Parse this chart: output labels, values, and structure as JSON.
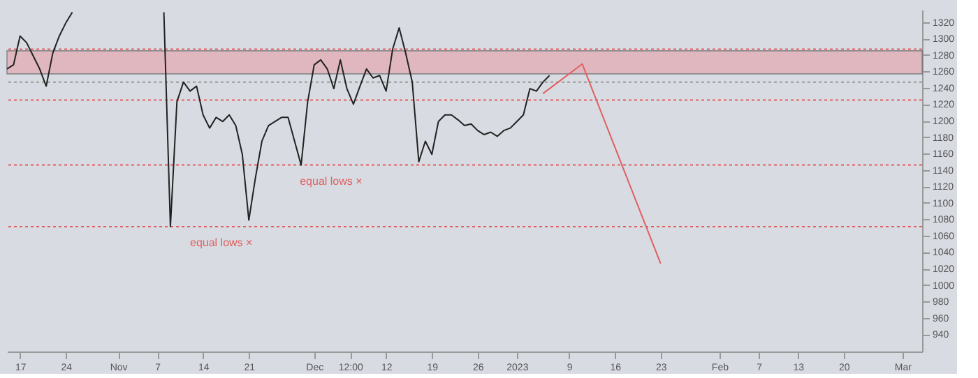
{
  "chart_data": {
    "type": "line",
    "xlim": [
      "2022-10-15",
      "2023-03-04"
    ],
    "ylim": [
      919,
      1335
    ],
    "xticks": [
      {
        "value": "2022-10-17",
        "label": "17"
      },
      {
        "value": "2022-10-24",
        "label": "24"
      },
      {
        "value": "2022-11-01",
        "label": "Nov"
      },
      {
        "value": "2022-11-07",
        "label": "7"
      },
      {
        "value": "2022-11-14",
        "label": "14"
      },
      {
        "value": "2022-11-21",
        "label": "21"
      },
      {
        "value": "2022-12-01",
        "label": "Dec"
      },
      {
        "value": "2022-12-06T12:00",
        "label": "12:00"
      },
      {
        "value": "2022-12-12",
        "label": "12"
      },
      {
        "value": "2022-12-19",
        "label": "19"
      },
      {
        "value": "2022-12-26",
        "label": "26"
      },
      {
        "value": "2023-01-01",
        "label": "2023"
      },
      {
        "value": "2023-01-09",
        "label": "9"
      },
      {
        "value": "2023-01-16",
        "label": "16"
      },
      {
        "value": "2023-01-23",
        "label": "23"
      },
      {
        "value": "2023-02-01",
        "label": "Feb"
      },
      {
        "value": "2023-02-07",
        "label": "7"
      },
      {
        "value": "2023-02-13",
        "label": "13"
      },
      {
        "value": "2023-02-20",
        "label": "20"
      },
      {
        "value": "2023-03-01",
        "label": "Mar"
      }
    ],
    "yticks": [
      940,
      960,
      980,
      1000,
      1020,
      1040,
      1060,
      1080,
      1100,
      1120,
      1140,
      1160,
      1180,
      1200,
      1220,
      1240,
      1260,
      1280,
      1300,
      1320
    ],
    "marker": "none",
    "line_style": "solid",
    "series": [
      {
        "color": "#222222",
        "x": [
          "2022-10-15",
          "2022-10-16",
          "2022-10-17",
          "2022-10-18",
          "2022-10-19",
          "2022-10-20",
          "2022-10-21",
          "2022-10-22",
          "2022-10-23",
          "2022-10-24",
          "2022-10-25",
          "2022-10-26",
          "2022-11-08",
          "2022-11-09",
          "2022-11-10",
          "2022-11-11",
          "2022-11-12",
          "2022-11-13",
          "2022-11-14",
          "2022-11-15",
          "2022-11-16",
          "2022-11-17",
          "2022-11-18",
          "2022-11-19",
          "2022-11-20",
          "2022-11-21",
          "2022-11-22",
          "2022-11-23",
          "2022-11-24",
          "2022-11-26",
          "2022-11-27",
          "2022-11-28",
          "2022-11-29",
          "2022-11-30",
          "2022-12-01",
          "2022-12-02",
          "2022-12-03",
          "2022-12-04",
          "2022-12-05",
          "2022-12-06",
          "2022-12-07",
          "2022-12-08",
          "2022-12-09",
          "2022-12-10",
          "2022-12-11",
          "2022-12-12",
          "2022-12-13",
          "2022-12-14",
          "2022-12-15",
          "2022-12-16",
          "2022-12-17",
          "2022-12-18",
          "2022-12-19",
          "2022-12-20",
          "2022-12-21",
          "2022-12-22",
          "2022-12-23",
          "2022-12-24",
          "2022-12-25",
          "2022-12-26",
          "2022-12-27",
          "2022-12-28",
          "2022-12-29",
          "2022-12-30",
          "2022-12-31",
          "2023-01-01",
          "2023-01-02",
          "2023-01-03",
          "2023-01-04",
          "2023-01-05",
          "2023-01-06"
        ],
        "values": [
          1263,
          1268,
          1303,
          1295,
          1279,
          1263,
          1242,
          1282,
          1303,
          1319,
          1332,
          null,
          1332,
          1071,
          1223,
          1247,
          1236,
          1242,
          1207,
          1191,
          1204,
          1199,
          1207,
          1194,
          1159,
          1079,
          1130,
          1175,
          1194,
          1204,
          1204,
          1175,
          1146,
          1223,
          1268,
          1274,
          1263,
          1239,
          1274,
          1239,
          1220,
          1242,
          1263,
          1252,
          1255,
          1236,
          1287,
          1313,
          1282,
          1247,
          1150,
          1175,
          1159,
          1199,
          1207,
          1207,
          1201,
          1194,
          1196,
          1188,
          1183,
          1186,
          1181,
          1188,
          1191,
          1199,
          1207,
          1239,
          1236,
          1247,
          1255
        ]
      },
      {
        "type": "line",
        "color": "#e06060",
        "x": [
          "2023-01-05",
          "2023-01-11",
          "2023-01-23"
        ],
        "values": [
          1233,
          1269,
          1026
        ]
      }
    ],
    "bands": [
      {
        "axis": "y",
        "from": 1257,
        "to": 1285,
        "color": "#e8a0a8"
      }
    ],
    "ref_lines": [
      {
        "axis": "y",
        "value": 1287,
        "color": "#e06060",
        "line_style": "dotted"
      },
      {
        "axis": "y",
        "value": 1247,
        "color": "#9a9a9a",
        "line_style": "dotted"
      },
      {
        "axis": "y",
        "value": 1225,
        "color": "#e06060",
        "line_style": "dotted"
      },
      {
        "axis": "y",
        "value": 1146,
        "color": "#e06060",
        "line_style": "dotted",
        "label": "equal lows  ×"
      },
      {
        "axis": "y",
        "value": 1071,
        "color": "#e06060",
        "line_style": "dotted",
        "label": "equal lows  ×"
      }
    ]
  }
}
